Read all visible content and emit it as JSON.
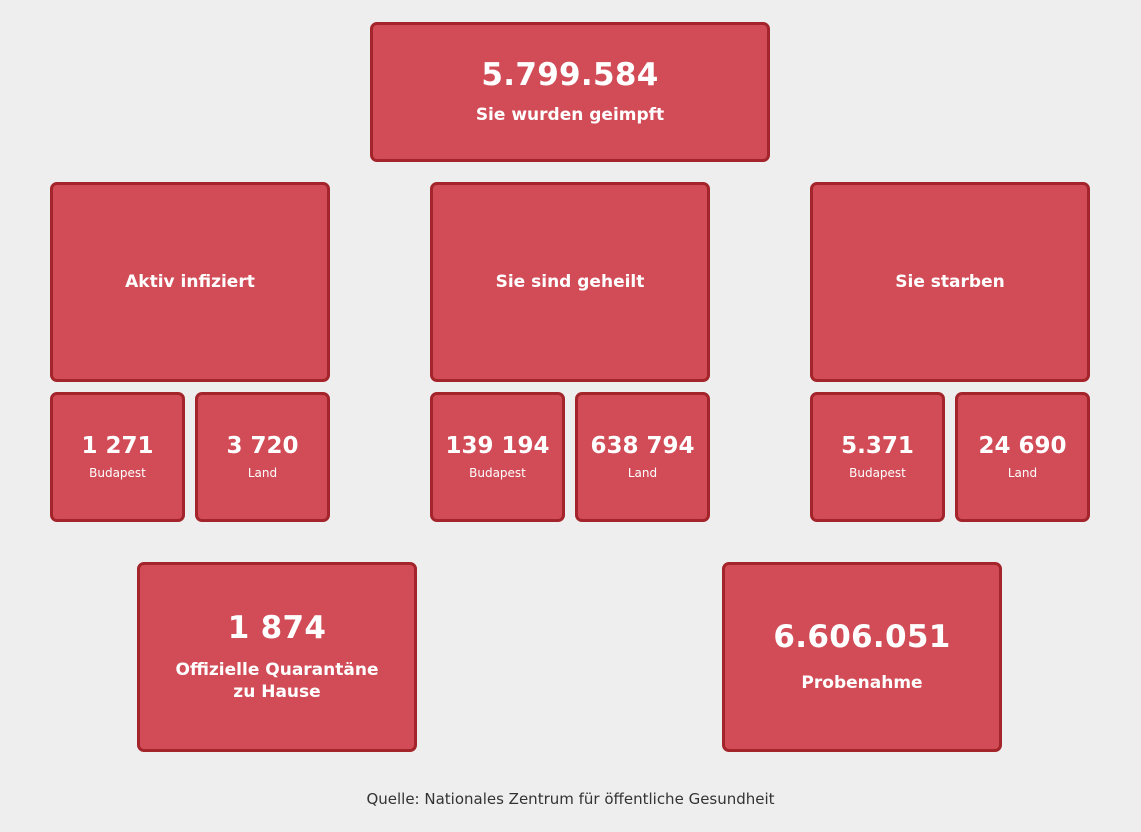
{
  "vaccinated": {
    "value": "5.799.584",
    "label": "Sie wurden geimpft"
  },
  "groups": [
    {
      "label": "Aktiv infiziert",
      "budapest": {
        "value": "1 271",
        "label": "Budapest"
      },
      "land": {
        "value": "3 720",
        "label": "Land"
      }
    },
    {
      "label": "Sie sind geheilt",
      "budapest": {
        "value": "139 194",
        "label": "Budapest"
      },
      "land": {
        "value": "638 794",
        "label": "Land"
      }
    },
    {
      "label": "Sie starben",
      "budapest": {
        "value": "5.371",
        "label": "Budapest"
      },
      "land": {
        "value": "24 690",
        "label": "Land"
      }
    }
  ],
  "quarantine": {
    "value": "1 874",
    "label_line1": "Offizielle Quarantäne",
    "label_line2": "zu Hause"
  },
  "sampling": {
    "value": "6.606.051",
    "label": "Probenahme"
  },
  "source": "Quelle: Nationales Zentrum für öffentliche Gesundheit",
  "colors": {
    "card_bg": "#d24c57",
    "card_border": "#a3242a",
    "page_bg": "#eeeeee"
  }
}
